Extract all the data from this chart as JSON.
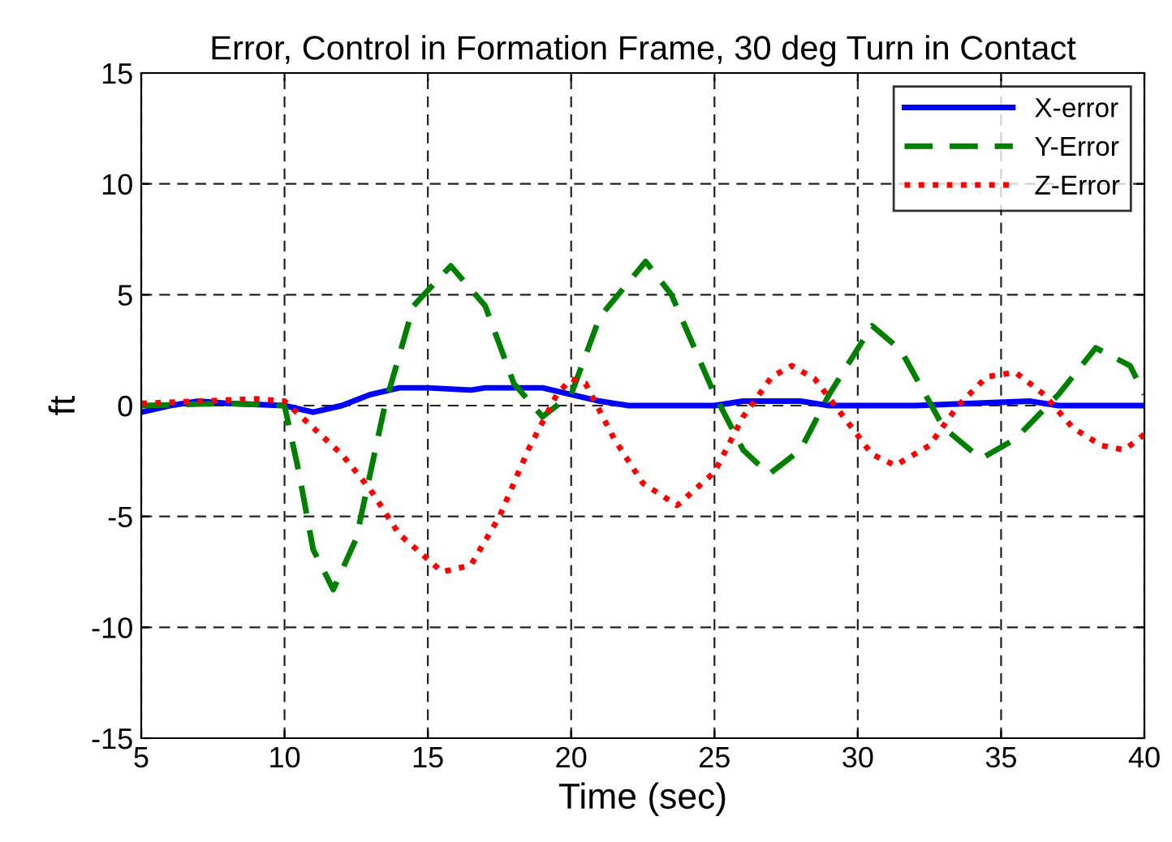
{
  "chart_data": {
    "type": "line",
    "title": "Error, Control in Formation Frame, 30 deg Turn in Contact",
    "xlabel": "Time (sec)",
    "ylabel": "ft",
    "xlim": [
      5,
      40
    ],
    "ylim": [
      -15,
      15
    ],
    "xticks": [
      5,
      10,
      15,
      20,
      25,
      30,
      35,
      40
    ],
    "yticks": [
      -15,
      -10,
      -5,
      0,
      5,
      10,
      15
    ],
    "grid": true,
    "legend": "top right",
    "series": [
      {
        "name": "X-error",
        "color": "#0000ff",
        "line_style": "solid",
        "x": [
          5,
          6,
          7,
          8,
          10,
          11,
          12,
          13,
          14,
          15,
          16.5,
          17,
          19,
          20,
          21,
          22,
          25,
          26,
          28,
          29,
          32,
          34,
          36,
          37,
          40
        ],
        "values": [
          -0.3,
          0,
          0.2,
          0.1,
          0,
          -0.3,
          0,
          0.5,
          0.8,
          0.8,
          0.7,
          0.8,
          0.8,
          0.5,
          0.2,
          0,
          0,
          0.2,
          0.2,
          0,
          0,
          0.1,
          0.2,
          0,
          0
        ]
      },
      {
        "name": "Y-Error",
        "color": "#008000",
        "line_style": "dashed",
        "x": [
          5,
          8,
          10,
          10.5,
          11,
          11.7,
          12.5,
          13.5,
          14.5,
          15.8,
          17,
          18,
          19,
          20,
          21,
          22.6,
          23.5,
          25,
          26,
          26.9,
          28,
          29,
          30.5,
          31.5,
          33,
          34.3,
          35.5,
          37,
          38.3,
          39.5,
          40
        ],
        "values": [
          0,
          0.1,
          0,
          -3,
          -6.5,
          -8.3,
          -6,
          0,
          4.5,
          6.3,
          4.5,
          1,
          -0.5,
          0.5,
          4,
          6.5,
          5,
          0.5,
          -2,
          -3.1,
          -2,
          0.5,
          3.6,
          2.5,
          -1,
          -2.4,
          -1.5,
          0.5,
          2.6,
          1.8,
          0.5
        ]
      },
      {
        "name": "Z-Error",
        "color": "#ff0000",
        "line_style": "dotted",
        "x": [
          5,
          9,
          10,
          11,
          12,
          13,
          14,
          15.5,
          16.5,
          17.5,
          18.5,
          19.5,
          20,
          20.5,
          21.5,
          22.5,
          23.7,
          25,
          26,
          27,
          27.7,
          28.5,
          29.5,
          30.5,
          31.3,
          32.5,
          33.5,
          34.5,
          35.5,
          36.5,
          37.5,
          38.5,
          39.3,
          40
        ],
        "values": [
          0.1,
          0.3,
          0.2,
          -1,
          -2.2,
          -3.8,
          -5.8,
          -7.5,
          -7.2,
          -5,
          -2,
          0.5,
          1.2,
          1,
          -1.5,
          -3.5,
          -4.5,
          -3,
          -0.5,
          1.3,
          1.8,
          1.2,
          -0.5,
          -2.2,
          -2.7,
          -1.8,
          0,
          1.3,
          1.5,
          0.5,
          -1,
          -1.8,
          -2,
          -1.3
        ]
      }
    ]
  }
}
